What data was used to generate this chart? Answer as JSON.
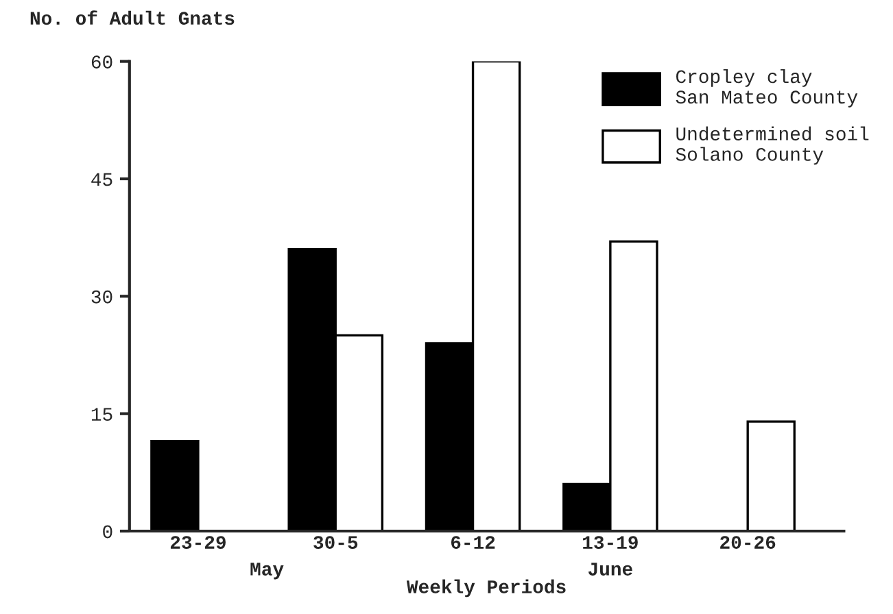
{
  "chart_data": {
    "type": "bar",
    "ylabel": "No. of Adult Gnats",
    "xlabel": "Weekly Periods",
    "categories": [
      "23-29",
      "30-5",
      "6-12",
      "13-19",
      "20-26"
    ],
    "series": [
      {
        "name": "Cropley clay\nSan Mateo County",
        "color": "#000000",
        "values": [
          11.5,
          36,
          24,
          6,
          null
        ]
      },
      {
        "name": "Undetermined soil\nSolano County",
        "color": "#ffffff",
        "values": [
          null,
          25,
          60,
          37,
          14
        ]
      }
    ],
    "annotations": [
      "May",
      "June"
    ],
    "ylim": [
      0,
      60
    ],
    "yticks": [
      0,
      15,
      30,
      45,
      60
    ],
    "grid": false,
    "legend": "top right"
  }
}
